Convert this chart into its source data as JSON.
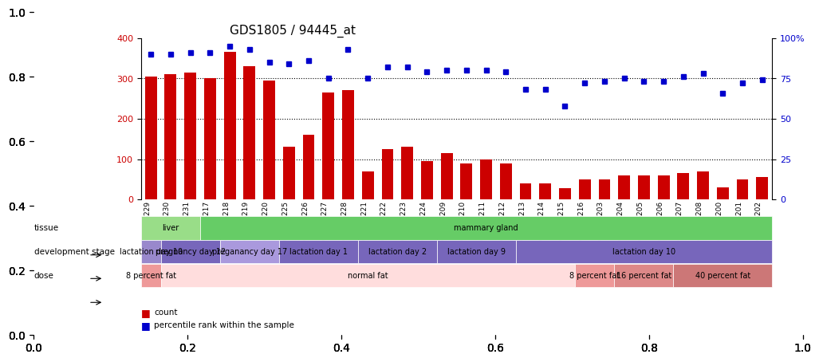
{
  "title": "GDS1805 / 94445_at",
  "samples": [
    "GSM96229",
    "GSM96230",
    "GSM96231",
    "GSM96217",
    "GSM96218",
    "GSM96219",
    "GSM96220",
    "GSM96225",
    "GSM96226",
    "GSM96227",
    "GSM96228",
    "GSM96221",
    "GSM96222",
    "GSM96223",
    "GSM96224",
    "GSM96209",
    "GSM96210",
    "GSM96211",
    "GSM96212",
    "GSM96213",
    "GSM96214",
    "GSM96215",
    "GSM96216",
    "GSM96203",
    "GSM96204",
    "GSM96205",
    "GSM96206",
    "GSM96207",
    "GSM96208",
    "GSM96200",
    "GSM96201",
    "GSM96202"
  ],
  "counts": [
    305,
    310,
    315,
    300,
    365,
    330,
    295,
    130,
    160,
    265,
    270,
    70,
    125,
    130,
    95,
    115,
    90,
    100,
    90,
    40,
    40,
    28,
    50,
    50,
    60,
    60,
    60,
    65,
    70,
    30,
    50,
    55
  ],
  "percentiles": [
    90,
    90,
    91,
    91,
    95,
    93,
    85,
    84,
    86,
    75,
    93,
    75,
    82,
    82,
    79,
    80,
    80,
    80,
    79,
    68,
    68,
    58,
    72,
    73,
    75,
    73,
    73,
    76,
    78,
    66,
    72,
    74
  ],
  "bar_color": "#cc0000",
  "dot_color": "#0000cc",
  "ylim_left": [
    0,
    400
  ],
  "ylim_right": [
    0,
    100
  ],
  "yticks_left": [
    0,
    100,
    200,
    300,
    400
  ],
  "yticks_right": [
    0,
    25,
    50,
    75,
    100
  ],
  "ytick_labels_right": [
    "0",
    "25",
    "50",
    "75",
    "100%"
  ],
  "tissue_row": {
    "label": "tissue",
    "segments": [
      {
        "text": "liver",
        "start": 0,
        "end": 3,
        "color": "#99dd88",
        "textcolor": "black"
      },
      {
        "text": "mammary gland",
        "start": 3,
        "end": 32,
        "color": "#66cc66",
        "textcolor": "black"
      }
    ]
  },
  "dev_stage_row": {
    "label": "development stage",
    "segments": [
      {
        "text": "lactation day 10",
        "start": 0,
        "end": 1,
        "color": "#9988cc",
        "textcolor": "black"
      },
      {
        "text": "pregnancy day 12",
        "start": 1,
        "end": 4,
        "color": "#7766bb",
        "textcolor": "black"
      },
      {
        "text": "preganancy day 17",
        "start": 4,
        "end": 7,
        "color": "#aa99dd",
        "textcolor": "black"
      },
      {
        "text": "lactation day 1",
        "start": 7,
        "end": 11,
        "color": "#7766bb",
        "textcolor": "black"
      },
      {
        "text": "lactation day 2",
        "start": 11,
        "end": 15,
        "color": "#7766bb",
        "textcolor": "black"
      },
      {
        "text": "lactation day 9",
        "start": 15,
        "end": 19,
        "color": "#7766bb",
        "textcolor": "black"
      },
      {
        "text": "lactation day 10",
        "start": 19,
        "end": 32,
        "color": "#7766bb",
        "textcolor": "black"
      }
    ]
  },
  "dose_row": {
    "label": "dose",
    "segments": [
      {
        "text": "8 percent fat",
        "start": 0,
        "end": 1,
        "color": "#ee9999",
        "textcolor": "black"
      },
      {
        "text": "normal fat",
        "start": 1,
        "end": 22,
        "color": "#ffdddd",
        "textcolor": "black"
      },
      {
        "text": "8 percent fat",
        "start": 22,
        "end": 24,
        "color": "#ee9999",
        "textcolor": "black"
      },
      {
        "text": "16 percent fat",
        "start": 24,
        "end": 27,
        "color": "#dd8888",
        "textcolor": "black"
      },
      {
        "text": "40 percent fat",
        "start": 27,
        "end": 32,
        "color": "#cc7777",
        "textcolor": "black"
      }
    ]
  },
  "legend_count_color": "#cc0000",
  "legend_pct_color": "#0000cc",
  "background_color": "#ffffff"
}
